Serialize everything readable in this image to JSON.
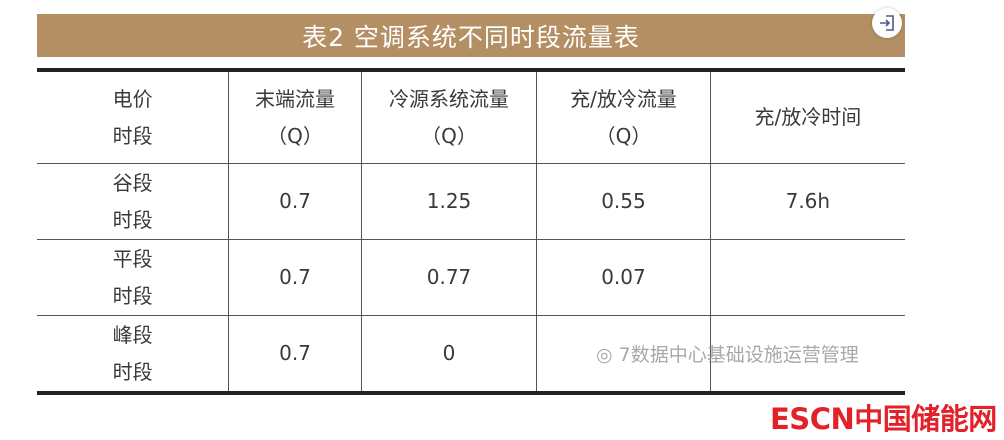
{
  "title": "表2  空调系统不同时段流量表",
  "expand_icon": "exit-to-box-icon",
  "table": {
    "headers": [
      [
        "电价",
        "时段"
      ],
      [
        "末端流量",
        "（Q）"
      ],
      [
        "冷源系统流量",
        "（Q）"
      ],
      [
        "充/放冷流量",
        "（Q）"
      ],
      [
        "充/放冷时间"
      ]
    ],
    "rows": [
      {
        "period": [
          "谷段",
          "时段"
        ],
        "terminal": "0.7",
        "source": "1.25",
        "charge": "0.55",
        "time": "7.6h"
      },
      {
        "period": [
          "平段",
          "时段"
        ],
        "terminal": "0.7",
        "source": "0.77",
        "charge": "0.07",
        "time": ""
      },
      {
        "period": [
          "峰段",
          "时段"
        ],
        "terminal": "0.7",
        "source": "0",
        "charge": "",
        "time": ""
      }
    ]
  },
  "watermark": "7数据中心基础设施运营管理",
  "logo": "ESCN中国储能网",
  "colors": {
    "banner": "#b48f64",
    "logo": "#e3212b"
  }
}
